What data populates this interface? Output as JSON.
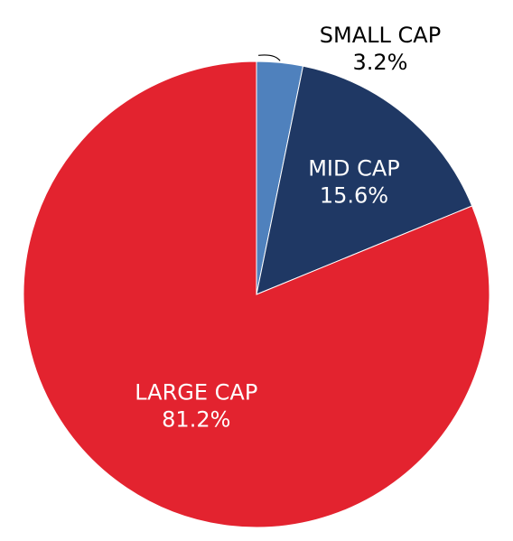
{
  "chart_data": {
    "type": "pie",
    "title": "",
    "start_angle_deg": 0,
    "direction": "clockwise",
    "slices": [
      {
        "label": "SMALL CAP",
        "value": 3.2,
        "value_label": "3.2%",
        "color": "#4f81bd",
        "label_placement": "outside"
      },
      {
        "label": "MID CAP",
        "value": 15.6,
        "value_label": "15.6%",
        "color": "#1f3864",
        "label_placement": "inside"
      },
      {
        "label": "LARGE CAP",
        "value": 81.2,
        "value_label": "81.2%",
        "color": "#e3232f",
        "label_placement": "inside"
      }
    ]
  }
}
